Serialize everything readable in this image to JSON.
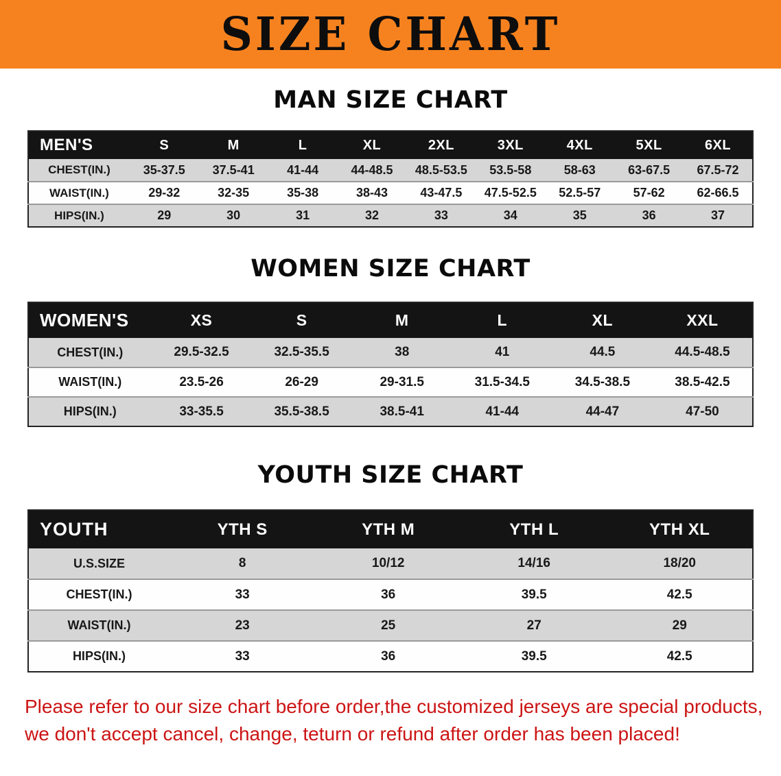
{
  "banner": {
    "title": "SIZE CHART",
    "bg_color": "#f6821f"
  },
  "sections": [
    {
      "id": "men",
      "heading": "MAN SIZE CHART",
      "table": {
        "header": [
          "MEN'S",
          "S",
          "M",
          "L",
          "XL",
          "2XL",
          "3XL",
          "4XL",
          "5XL",
          "6XL"
        ],
        "rows": [
          [
            "CHEST(IN.)",
            "35-37.5",
            "37.5-41",
            "41-44",
            "44-48.5",
            "48.5-53.5",
            "53.5-58",
            "58-63",
            "63-67.5",
            "67.5-72"
          ],
          [
            "WAIST(IN.)",
            "29-32",
            "32-35",
            "35-38",
            "38-43",
            "43-47.5",
            "47.5-52.5",
            "52.5-57",
            "57-62",
            "62-66.5"
          ],
          [
            "HIPS(IN.)",
            "29",
            "30",
            "31",
            "32",
            "33",
            "34",
            "35",
            "36",
            "37"
          ]
        ]
      }
    },
    {
      "id": "women",
      "heading": "WOMEN SIZE CHART",
      "table": {
        "header": [
          "WOMEN'S",
          "XS",
          "S",
          "M",
          "L",
          "XL",
          "XXL"
        ],
        "rows": [
          [
            "CHEST(IN.)",
            "29.5-32.5",
            "32.5-35.5",
            "38",
            "41",
            "44.5",
            "44.5-48.5"
          ],
          [
            "WAIST(IN.)",
            "23.5-26",
            "26-29",
            "29-31.5",
            "31.5-34.5",
            "34.5-38.5",
            "38.5-42.5"
          ],
          [
            "HIPS(IN.)",
            "33-35.5",
            "35.5-38.5",
            "38.5-41",
            "41-44",
            "44-47",
            "47-50"
          ]
        ]
      }
    },
    {
      "id": "youth",
      "heading": "YOUTH SIZE CHART",
      "table": {
        "header": [
          "YOUTH",
          "YTH S",
          "YTH M",
          "YTH L",
          "YTH XL"
        ],
        "rows": [
          [
            "U.S.SIZE",
            "8",
            "10/12",
            "14/16",
            "18/20"
          ],
          [
            "CHEST(IN.)",
            "33",
            "36",
            "39.5",
            "42.5"
          ],
          [
            "WAIST(IN.)",
            "23",
            "25",
            "27",
            "29"
          ],
          [
            "HIPS(IN.)",
            "33",
            "36",
            "39.5",
            "42.5"
          ]
        ]
      }
    }
  ],
  "disclaimer": {
    "color": "#cc1414",
    "line1": "Please refer to our size chart before order,the customized jerseys are special products,",
    "line2": "we don't accept cancel, change, teturn or refund after order has been placed!"
  }
}
